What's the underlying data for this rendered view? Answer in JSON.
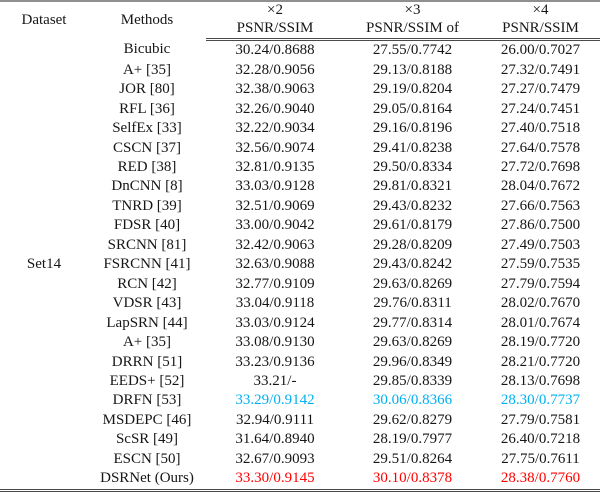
{
  "table": {
    "dataset_label": "Set14",
    "header": {
      "dataset": "Dataset",
      "methods": "Methods",
      "scales": [
        {
          "scale": "×2",
          "metric": "PSNR/SSIM"
        },
        {
          "scale": "×3",
          "metric": "PSNR/SSIM of"
        },
        {
          "scale": "×4",
          "metric": "PSNR/SSIM"
        }
      ]
    },
    "colors": {
      "second_best": "#00b0f0",
      "best": "#ff0000"
    },
    "rows": [
      {
        "method": "Bicubic",
        "x2": "30.24/0.8688",
        "x3": "27.55/0.7742",
        "x4": "26.00/0.7027",
        "highlight": "none"
      },
      {
        "method": "A+ [35]",
        "x2": "32.28/0.9056",
        "x3": "29.13/0.8188",
        "x4": "27.32/0.7491",
        "highlight": "none"
      },
      {
        "method": "JOR [80]",
        "x2": "32.38/0.9063",
        "x3": "29.19/0.8204",
        "x4": "27.27/0.7479",
        "highlight": "none"
      },
      {
        "method": "RFL [36]",
        "x2": "32.26/0.9040",
        "x3": "29.05/0.8164",
        "x4": "27.24/0.7451",
        "highlight": "none"
      },
      {
        "method": "SelfEx [33]",
        "x2": "32.22/0.9034",
        "x3": "29.16/0.8196",
        "x4": "27.40/0.7518",
        "highlight": "none"
      },
      {
        "method": "CSCN [37]",
        "x2": "32.56/0.9074",
        "x3": "29.41/0.8238",
        "x4": "27.64/0.7578",
        "highlight": "none"
      },
      {
        "method": "RED [38]",
        "x2": "32.81/0.9135",
        "x3": "29.50/0.8334",
        "x4": "27.72/0.7698",
        "highlight": "none"
      },
      {
        "method": "DnCNN [8]",
        "x2": "33.03/0.9128",
        "x3": "29.81/0.8321",
        "x4": "28.04/0.7672",
        "highlight": "none"
      },
      {
        "method": "TNRD [39]",
        "x2": "32.51/0.9069",
        "x3": "29.43/0.8232",
        "x4": "27.66/0.7563",
        "highlight": "none"
      },
      {
        "method": "FDSR [40]",
        "x2": "33.00/0.9042",
        "x3": "29.61/0.8179",
        "x4": "27.86/0.7500",
        "highlight": "none"
      },
      {
        "method": "SRCNN [81]",
        "x2": "32.42/0.9063",
        "x3": "29.28/0.8209",
        "x4": "27.49/0.7503",
        "highlight": "none"
      },
      {
        "method": "FSRCNN [41]",
        "x2": "32.63/0.9088",
        "x3": "29.43/0.8242",
        "x4": "27.59/0.7535",
        "highlight": "none"
      },
      {
        "method": "RCN [42]",
        "x2": "32.77/0.9109",
        "x3": "29.63/0.8269",
        "x4": "27.79/0.7594",
        "highlight": "none"
      },
      {
        "method": "VDSR [43]",
        "x2": "33.04/0.9118",
        "x3": "29.76/0.8311",
        "x4": "28.02/0.7670",
        "highlight": "none"
      },
      {
        "method": "LapSRN [44]",
        "x2": "33.03/0.9124",
        "x3": "29.77/0.8314",
        "x4": "28.01/0.7674",
        "highlight": "none"
      },
      {
        "method": "A+ [35]",
        "x2": "33.08/0.9130",
        "x3": "29.63/0.8269",
        "x4": "28.19/0.7720",
        "highlight": "none"
      },
      {
        "method": "DRRN [51]",
        "x2": "33.23/0.9136",
        "x3": "29.96/0.8349",
        "x4": "28.21/0.7720",
        "highlight": "none"
      },
      {
        "method": "EEDS+ [52]",
        "x2": "33.21/-",
        "x3": "29.85/0.8339",
        "x4": "28.13/0.7698",
        "highlight": "none"
      },
      {
        "method": "DRFN [53]",
        "x2": "33.29/0.9142",
        "x3": "30.06/0.8366",
        "x4": "28.30/0.7737",
        "highlight": "second_best"
      },
      {
        "method": "MSDEPC [46]",
        "x2": "32.94/0.9111",
        "x3": "29.62/0.8279",
        "x4": "27.79/0.7581",
        "highlight": "none"
      },
      {
        "method": "ScSR [49]",
        "x2": "31.64/0.8940",
        "x3": "28.19/0.7977",
        "x4": "26.40/0.7218",
        "highlight": "none"
      },
      {
        "method": "ESCN [50]",
        "x2": "32.67/0.9093",
        "x3": "29.51/0.8264",
        "x4": "27.75/0.7611",
        "highlight": "none"
      },
      {
        "method": "DSRNet (Ours)",
        "x2": "33.30/0.9145",
        "x3": "30.10/0.8378",
        "x4": "28.38/0.7760",
        "highlight": "best"
      }
    ]
  }
}
